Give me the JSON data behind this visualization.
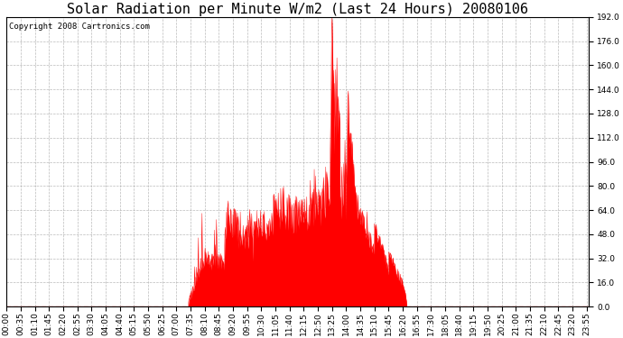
{
  "title": "Solar Radiation per Minute W/m2 (Last 24 Hours) 20080106",
  "copyright_text": "Copyright 2008 Cartronics.com",
  "y_min": 0.0,
  "y_max": 192.0,
  "y_ticks": [
    0.0,
    16.0,
    32.0,
    48.0,
    64.0,
    80.0,
    96.0,
    112.0,
    128.0,
    144.0,
    160.0,
    176.0,
    192.0
  ],
  "fill_color": "#FF0000",
  "line_color": "#FF0000",
  "dashed_line_color": "#FF0000",
  "bg_color": "#FFFFFF",
  "grid_color": "#AAAAAA",
  "title_fontsize": 11,
  "copyright_fontsize": 6.5,
  "tick_fontsize": 6.5
}
